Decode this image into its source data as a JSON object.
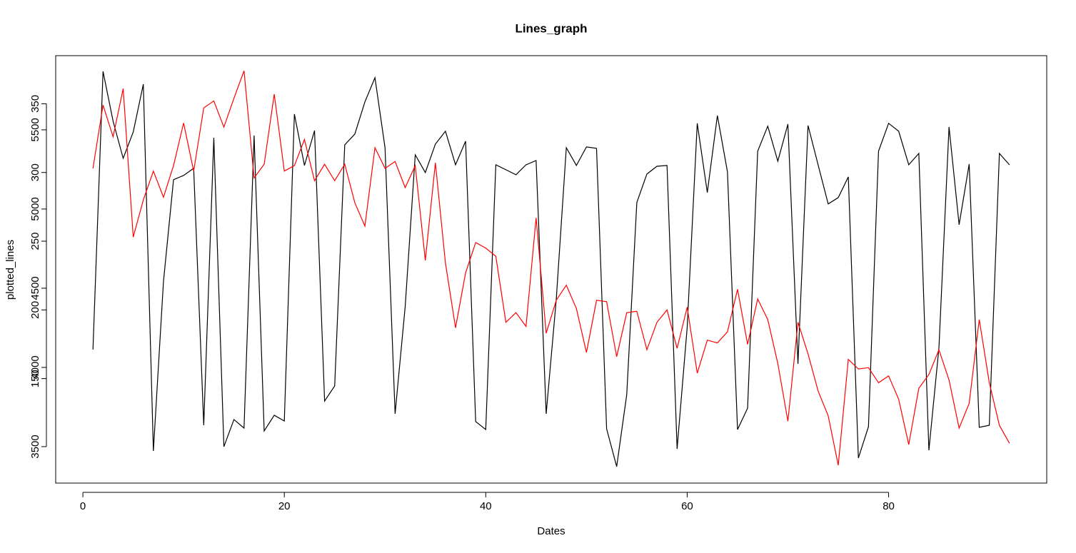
{
  "chart_data": {
    "type": "line",
    "title": "Lines_graph",
    "x_label": "Dates",
    "y_label": "plotted_lines",
    "x": [
      1,
      2,
      3,
      4,
      5,
      6,
      7,
      8,
      9,
      10,
      11,
      12,
      13,
      14,
      15,
      16,
      17,
      18,
      19,
      20,
      21,
      22,
      23,
      24,
      25,
      26,
      27,
      28,
      29,
      30,
      31,
      32,
      33,
      34,
      35,
      36,
      37,
      38,
      39,
      40,
      41,
      42,
      43,
      44,
      45,
      46,
      47,
      48,
      49,
      50,
      51,
      52,
      53,
      54,
      55,
      56,
      57,
      58,
      59,
      60,
      61,
      62,
      63,
      64,
      65,
      66,
      67,
      68,
      69,
      70,
      71,
      72,
      73,
      74,
      75,
      76,
      77,
      78,
      79,
      80,
      81,
      82,
      83,
      84,
      85,
      86,
      87,
      88,
      89,
      90,
      91,
      92
    ],
    "series": [
      {
        "color": "#000000",
        "axis": "y",
        "values": [
          4113,
          5869,
          5554,
          5320,
          5486,
          5788,
          3473,
          4541,
          5185,
          5212,
          5257,
          3635,
          5450,
          3500,
          3671,
          3617,
          5464,
          3599,
          3698,
          3662,
          5599,
          5275,
          5495,
          3788,
          3883,
          5405,
          5473,
          5676,
          5829,
          5387,
          3707,
          4383,
          5342,
          5230,
          5410,
          5491,
          5279,
          5428,
          3658,
          3608,
          5279,
          5248,
          5216,
          5279,
          5306,
          3707,
          4428,
          5387,
          5275,
          5392,
          5383,
          3613,
          3374,
          3829,
          5041,
          5221,
          5270,
          5275,
          3486,
          4252,
          5541,
          5104,
          5590,
          5234,
          3608,
          3743,
          5365,
          5523,
          5302,
          5536,
          4023,
          5527,
          5279,
          5032,
          5072,
          5203,
          3428,
          3626,
          5365,
          5541,
          5491,
          5279,
          5351,
          3477,
          4126,
          5518,
          4901,
          5284,
          3622,
          3635,
          5351,
          5279
        ]
      },
      {
        "color": "#ff0000",
        "axis": "y2",
        "values": [
          303,
          349,
          326,
          361,
          253,
          280,
          301,
          282,
          305,
          336,
          301,
          347,
          352,
          333,
          354,
          374,
          296,
          306,
          357,
          301,
          305,
          324,
          294,
          306,
          294,
          306,
          278,
          261,
          318,
          303,
          308,
          289,
          305,
          236,
          307,
          234,
          187,
          227,
          249,
          245,
          239,
          191,
          198,
          188,
          267,
          183,
          207,
          218,
          201,
          169,
          207,
          206,
          166,
          198,
          199,
          171,
          191,
          200,
          172,
          202,
          154,
          178,
          176,
          184,
          215,
          175,
          208,
          193,
          161,
          119,
          191,
          168,
          141,
          123,
          87,
          164,
          157,
          158,
          147,
          152,
          135,
          102,
          143,
          153,
          171,
          149,
          114,
          132,
          193,
          147,
          116,
          103
        ]
      }
    ],
    "xlim": [
      -2.7,
      95.7
    ],
    "xticks": [
      0,
      20,
      40,
      60,
      80
    ],
    "ylim": [
      3270,
      5968
    ],
    "yticks": [
      3500,
      4000,
      4500,
      5000,
      5500
    ],
    "y2lim": [
      74,
      385
    ],
    "y2ticks": [
      150,
      200,
      250,
      300,
      350
    ]
  }
}
